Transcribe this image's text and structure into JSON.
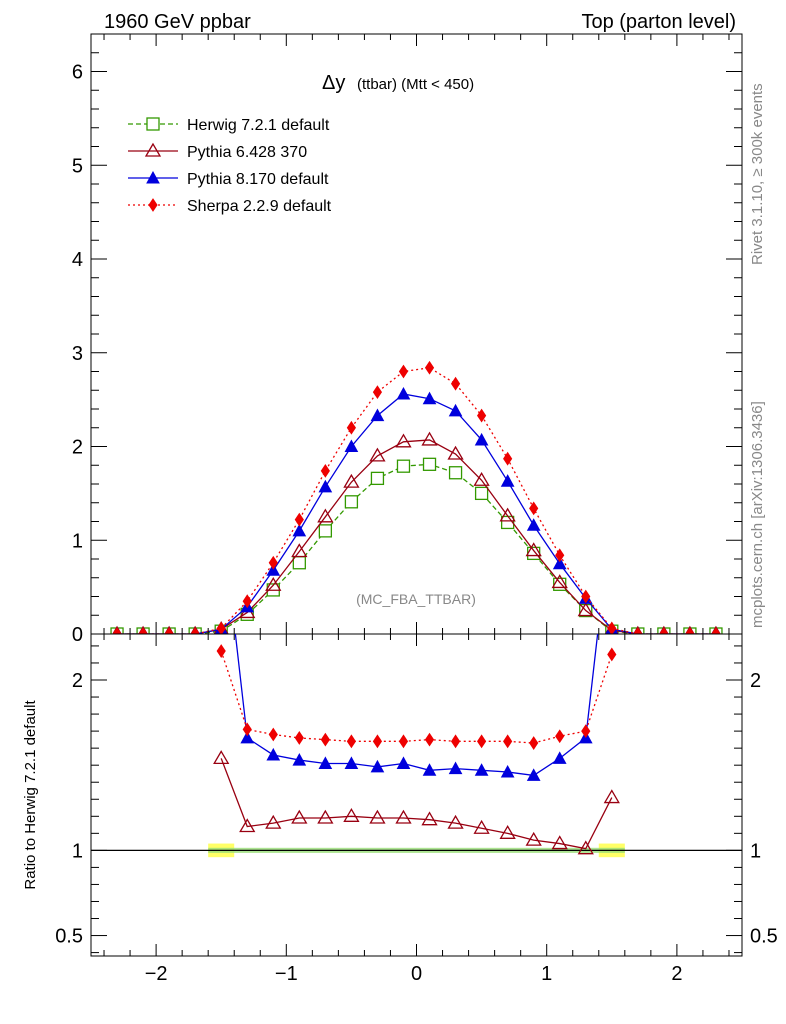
{
  "header": {
    "left_title": "1960 GeV ppbar",
    "right_title": "Top (parton level)"
  },
  "side_text": {
    "rivet": "Rivet 3.1.10, ≥ 300k events",
    "mcplots": "mcplots.cern.ch [arXiv:1306.3436]"
  },
  "chart_data": {
    "type": "line",
    "title_main": "Δy",
    "title_sub": "(ttbar) (Mtt < 450)",
    "watermark": "(MC_FBA_TTBAR)",
    "xlabel": "",
    "ylabel_ratio": "Ratio to Herwig 7.2.1 default",
    "xlim": [
      -2.5,
      2.5
    ],
    "ylim_main": [
      0,
      6.4
    ],
    "ylim_ratio": [
      0.38,
      2.27
    ],
    "x_ticks": [
      "−2",
      "−1",
      "0",
      "1",
      "2"
    ],
    "x_tick_values": [
      -2,
      -1,
      0,
      1,
      2
    ],
    "y_ticks_main": [
      "0",
      "1",
      "2",
      "3",
      "4",
      "5",
      "6"
    ],
    "y_ticks_ratio": [
      "0.5",
      "1",
      "2"
    ],
    "y_tick_values_ratio": [
      0.5,
      1,
      2
    ],
    "x": [
      -2.3,
      -2.1,
      -1.9,
      -1.7,
      -1.5,
      -1.3,
      -1.1,
      -0.9,
      -0.7,
      -0.5,
      -0.3,
      -0.1,
      0.1,
      0.3,
      0.5,
      0.7,
      0.9,
      1.1,
      1.3,
      1.5,
      1.7,
      1.9,
      2.1,
      2.3
    ],
    "series": [
      {
        "name": "Herwig 7.2.1 default",
        "color": "#339900",
        "marker": "open-square",
        "line": "dashed",
        "values": [
          0,
          0,
          0,
          0,
          0.03,
          0.21,
          0.47,
          0.76,
          1.1,
          1.41,
          1.66,
          1.79,
          1.81,
          1.72,
          1.5,
          1.19,
          0.86,
          0.53,
          0.25,
          0.03,
          0,
          0,
          0,
          0
        ],
        "ratio": [
          1,
          1,
          1,
          1,
          1,
          1,
          1,
          1,
          1,
          1,
          1,
          1,
          1,
          1,
          1,
          1,
          1,
          1,
          1,
          1
        ]
      },
      {
        "name": "Pythia 6.428 370",
        "color": "#990011",
        "marker": "open-triangle",
        "line": "solid",
        "values": [
          0,
          0,
          0,
          0,
          0.05,
          0.23,
          0.52,
          0.88,
          1.25,
          1.62,
          1.9,
          2.05,
          2.07,
          1.92,
          1.64,
          1.26,
          0.89,
          0.55,
          0.25,
          0.04,
          0,
          0,
          0,
          0
        ],
        "ratio_x": [
          -1.5,
          -1.3,
          -1.1,
          -0.9,
          -0.7,
          -0.5,
          -0.3,
          -0.1,
          0.1,
          0.3,
          0.5,
          0.7,
          0.9,
          1.1,
          1.3,
          1.5
        ],
        "ratio": [
          1.54,
          1.14,
          1.16,
          1.19,
          1.19,
          1.2,
          1.19,
          1.19,
          1.18,
          1.16,
          1.13,
          1.1,
          1.06,
          1.04,
          1.01,
          1.31
        ]
      },
      {
        "name": "Pythia 8.170 default",
        "color": "#0000dd",
        "marker": "filled-triangle",
        "line": "solid",
        "values": [
          0,
          0,
          0,
          0,
          0.05,
          0.29,
          0.68,
          1.1,
          1.57,
          2.0,
          2.33,
          2.56,
          2.51,
          2.38,
          2.07,
          1.63,
          1.16,
          0.75,
          0.38,
          0.05,
          0,
          0,
          0,
          0
        ],
        "ratio_x": [
          -1.3,
          -1.1,
          -0.9,
          -0.7,
          -0.5,
          -0.3,
          -0.1,
          0.1,
          0.3,
          0.5,
          0.7,
          0.9,
          1.1,
          1.3
        ],
        "ratio": [
          1.66,
          1.56,
          1.53,
          1.51,
          1.51,
          1.49,
          1.51,
          1.47,
          1.48,
          1.47,
          1.46,
          1.44,
          1.54,
          1.66
        ]
      },
      {
        "name": "Sherpa 2.2.9 default",
        "color": "#ee0000",
        "marker": "filled-diamond",
        "line": "dotted",
        "values": [
          0,
          0,
          0,
          0,
          0.06,
          0.35,
          0.76,
          1.22,
          1.74,
          2.2,
          2.58,
          2.8,
          2.84,
          2.67,
          2.33,
          1.87,
          1.34,
          0.84,
          0.4,
          0.06,
          0,
          0,
          0,
          0
        ],
        "ratio_x": [
          -1.5,
          -1.3,
          -1.1,
          -0.9,
          -0.7,
          -0.5,
          -0.3,
          -0.1,
          0.1,
          0.3,
          0.5,
          0.7,
          0.9,
          1.1,
          1.3,
          1.5
        ],
        "ratio": [
          2.17,
          1.71,
          1.68,
          1.66,
          1.65,
          1.64,
          1.64,
          1.64,
          1.65,
          1.64,
          1.64,
          1.64,
          1.63,
          1.67,
          1.7,
          2.15
        ]
      }
    ],
    "legend_position": "top-left"
  }
}
